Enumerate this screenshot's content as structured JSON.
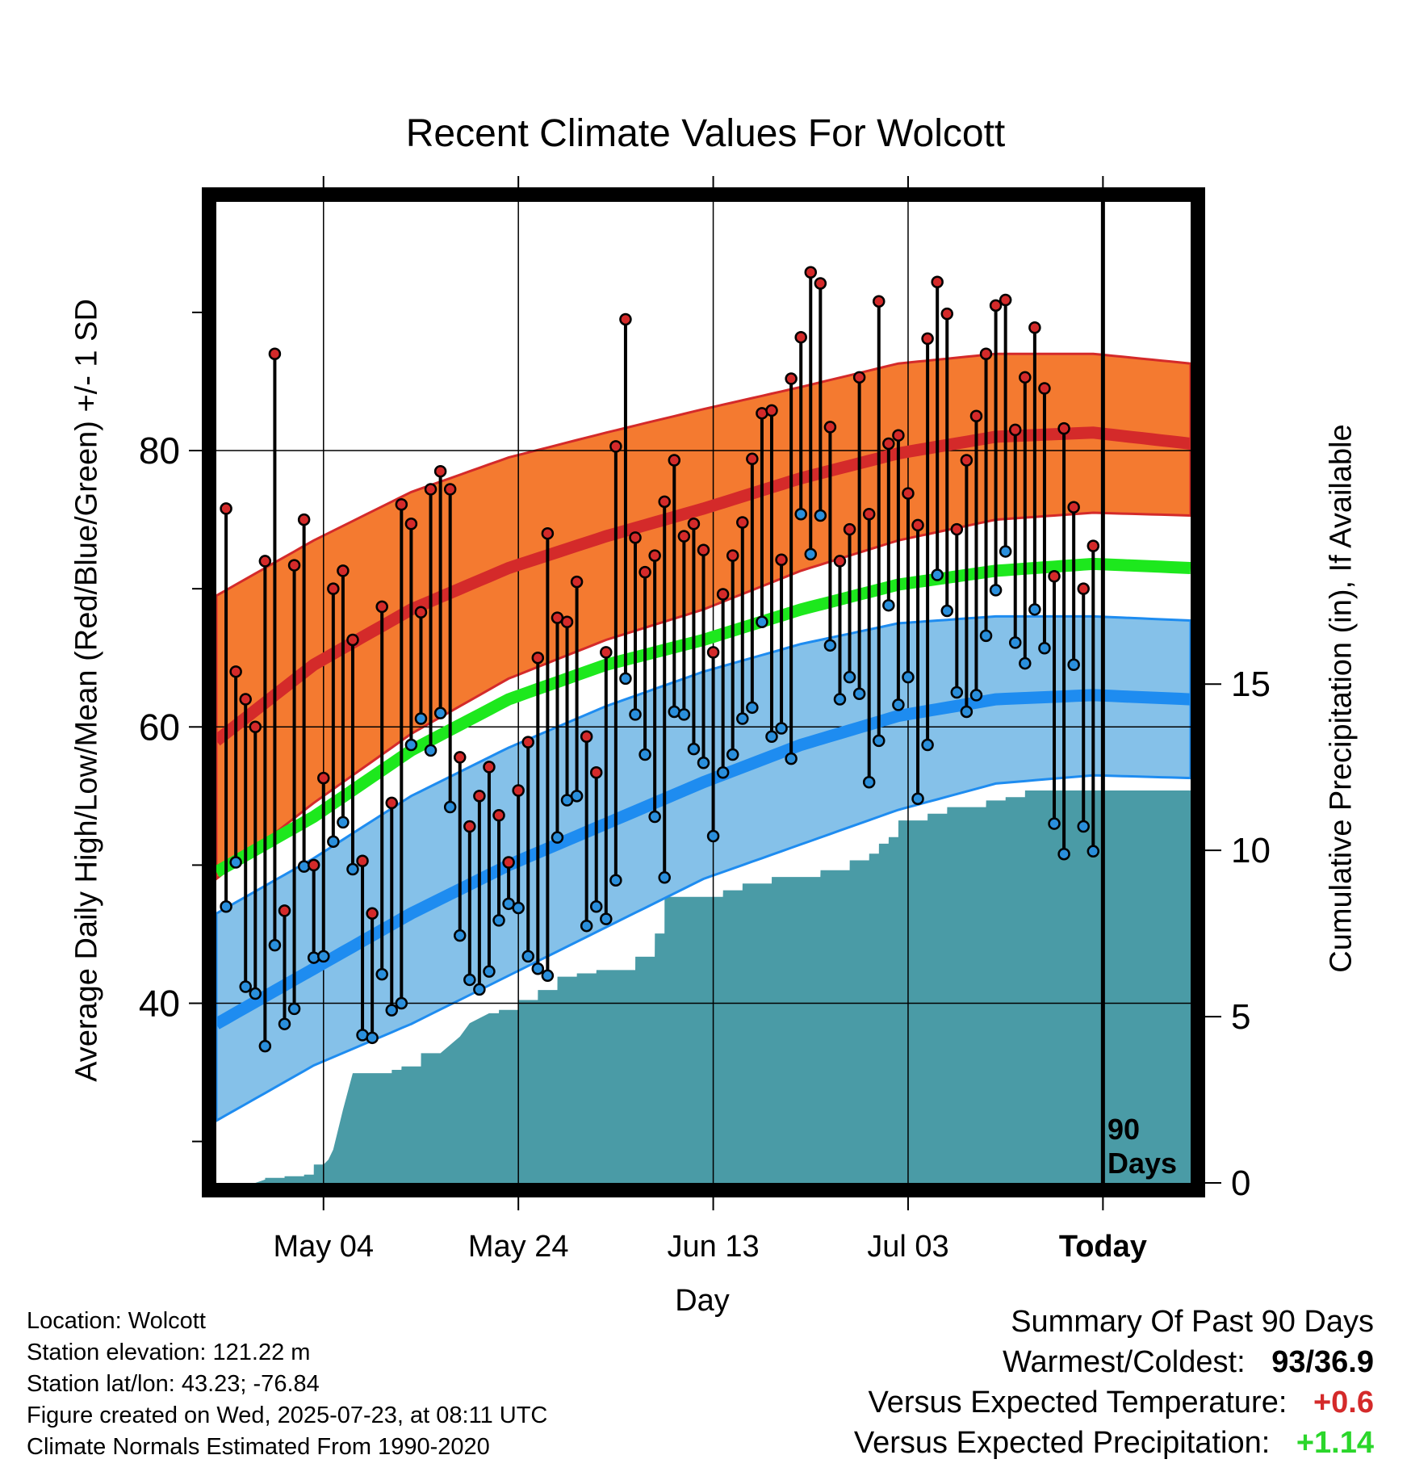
{
  "title": "Recent Climate Values For Wolcott",
  "chart_data": {
    "type": "line",
    "title": "Recent Climate Values For Wolcott",
    "xlabel": "Day",
    "ylabel": "Average Daily High/Low/Mean (Red/Blue/Green) +/- 1 SD",
    "y2label": "Cumulative Precipitation (in), If Available",
    "x_ticks": [
      "May 04",
      "May 24",
      "Jun 13",
      "Jul 03",
      "Today"
    ],
    "x_tick_days": [
      11,
      31,
      51,
      71,
      91
    ],
    "x_range": [
      0,
      100
    ],
    "ylim": [
      27,
      98
    ],
    "y_ticks": [
      40,
      60,
      80
    ],
    "y_minor_ticks": [
      30,
      50,
      70,
      90
    ],
    "y2lim": [
      0,
      29.5
    ],
    "y2_ticks": [
      0,
      5,
      10,
      15
    ],
    "grid": true,
    "today_marker": {
      "day": 91,
      "label_line1": "90",
      "label_line2": "Days"
    },
    "normals": {
      "days": [
        0,
        10,
        20,
        30,
        40,
        50,
        60,
        70,
        80,
        90,
        100
      ],
      "high_mean": [
        59,
        64.5,
        68.5,
        71.5,
        73.8,
        75.8,
        78,
        79.8,
        81,
        81.3,
        80.5
      ],
      "high_upper": [
        69.5,
        73.5,
        77,
        79.5,
        81.3,
        83,
        84.6,
        86.3,
        87,
        87,
        86.3
      ],
      "high_lower": [
        49,
        54.5,
        59.5,
        63.5,
        66.3,
        68.5,
        71.3,
        73.5,
        75,
        75.5,
        75.3
      ],
      "mean": [
        49.5,
        53.5,
        58.3,
        62,
        64.5,
        66.3,
        68.5,
        70.3,
        71.3,
        71.8,
        71.5
      ],
      "low_mean": [
        38.5,
        42.5,
        46.5,
        50,
        53,
        56,
        58.7,
        60.8,
        62,
        62.3,
        62
      ],
      "low_upper": [
        46.5,
        50.5,
        55,
        58.5,
        61.5,
        64,
        66,
        67.5,
        68,
        68,
        67.7
      ],
      "low_lower": [
        31.5,
        35.5,
        38.5,
        42,
        45.5,
        49,
        51.5,
        54,
        55.9,
        56.5,
        56.3
      ]
    },
    "series": [
      {
        "name": "High",
        "color": "#d42a2a",
        "values": [
          75.8,
          64,
          62,
          60,
          72,
          87,
          46.7,
          71.7,
          75,
          50,
          56.3,
          70,
          71.3,
          66.3,
          50.3,
          46.5,
          68.7,
          54.5,
          76.1,
          74.7,
          68.3,
          77.2,
          78.5,
          77.2,
          57.8,
          52.8,
          55,
          57.1,
          53.6,
          50.2,
          55.4,
          58.9,
          65,
          74,
          67.9,
          67.6,
          70.5,
          59.3,
          56.7,
          65.4,
          80.3,
          89.5,
          73.7,
          71.2,
          72.4,
          76.3,
          79.3,
          73.8,
          74.7,
          72.8,
          65.4,
          69.6,
          72.4,
          74.8,
          79.4,
          82.7,
          82.9,
          72.1,
          85.2,
          88.2,
          92.9,
          92.1,
          81.7,
          72,
          74.3,
          85.3,
          75.4,
          90.8,
          80.5,
          81.1,
          76.9,
          74.6,
          88.1,
          92.2,
          89.9,
          74.3,
          79.3,
          82.5,
          87,
          90.5,
          90.9,
          81.5,
          85.3,
          88.9,
          84.5,
          70.9,
          81.6,
          75.9,
          70,
          73.1
        ]
      },
      {
        "name": "Low",
        "color": "#2a8fdc",
        "values": [
          47,
          50.2,
          41.2,
          40.7,
          36.9,
          44.2,
          38.5,
          39.6,
          49.9,
          43.3,
          43.4,
          51.7,
          53.1,
          49.7,
          37.7,
          37.5,
          42.1,
          39.5,
          40,
          58.7,
          60.6,
          58.3,
          61,
          54.2,
          44.9,
          41.7,
          41,
          42.3,
          46,
          47.2,
          46.9,
          43.4,
          42.5,
          42,
          52,
          54.7,
          55,
          45.6,
          47,
          46.1,
          48.9,
          63.5,
          60.9,
          58,
          53.5,
          49.1,
          61.1,
          60.9,
          58.4,
          57.4,
          52.1,
          56.7,
          58,
          60.6,
          61.4,
          67.6,
          59.3,
          59.9,
          57.7,
          75.4,
          72.5,
          75.3,
          65.9,
          62,
          63.6,
          62.4,
          56,
          59,
          68.8,
          61.6,
          63.6,
          54.8,
          58.7,
          71,
          68.4,
          62.5,
          61.1,
          62.3,
          66.6,
          69.9,
          72.7,
          66.1,
          64.6,
          68.5,
          65.7,
          53,
          50.8,
          64.5,
          52.8,
          51
        ]
      },
      {
        "name": "Cumulative Precipitation",
        "color": "#4a9ba6",
        "days": [
          4,
          5,
          5.01,
          7,
          7.01,
          9,
          9.01,
          10,
          10.01,
          11,
          11.5,
          12,
          13,
          14,
          14.01,
          18,
          18.01,
          19,
          19.01,
          21,
          21.01,
          23,
          25,
          26,
          28,
          29,
          29.01,
          31,
          31.01,
          33,
          33.01,
          35,
          35.01,
          37,
          37.01,
          39,
          39.01,
          43,
          43.01,
          45,
          45.01,
          46,
          46.01,
          52,
          52.01,
          54,
          54.01,
          57,
          57.01,
          62,
          62.01,
          65,
          65.01,
          67,
          67.01,
          68,
          68.01,
          69,
          69.01,
          70,
          70.01,
          73,
          73.01,
          75,
          75.01,
          79,
          79.01,
          81,
          81.01,
          82,
          82.01,
          83,
          83.01,
          100
        ],
        "values": [
          0,
          0.1,
          0.15,
          0.15,
          0.2,
          0.2,
          0.25,
          0.25,
          0.55,
          0.55,
          0.7,
          1.0,
          2.2,
          3.3,
          3.3,
          3.3,
          3.4,
          3.4,
          3.5,
          3.5,
          3.9,
          3.9,
          4.4,
          4.8,
          5.1,
          5.1,
          5.2,
          5.2,
          5.5,
          5.5,
          5.8,
          5.8,
          6.2,
          6.2,
          6.3,
          6.3,
          6.4,
          6.4,
          6.8,
          6.8,
          7.5,
          7.5,
          8.6,
          8.6,
          8.8,
          8.8,
          9.0,
          9.0,
          9.2,
          9.2,
          9.4,
          9.4,
          9.7,
          9.7,
          9.9,
          9.9,
          10.2,
          10.2,
          10.4,
          10.4,
          10.9,
          10.9,
          11.1,
          11.1,
          11.3,
          11.3,
          11.5,
          11.5,
          11.6,
          11.6,
          11.6,
          11.6,
          11.8,
          11.8
        ]
      }
    ]
  },
  "footer": {
    "location": "Location: Wolcott",
    "elevation": "Station elevation: 121.22 m",
    "latlon": "Station lat/lon: 43.23; -76.84",
    "created": "Figure created on Wed, 2025-07-23, at 08:11 UTC",
    "normals": "Climate Normals Estimated From 1990-2020"
  },
  "summary": {
    "heading": "Summary Of Past 90 Days",
    "warmest_label": "Warmest/Coldest:",
    "warmest_value": "93/36.9",
    "temp_label": "Versus Expected Temperature:",
    "temp_value": "+0.6",
    "temp_color": "#d42a2a",
    "precip_label": "Versus Expected Precipitation:",
    "precip_value": "+1.14",
    "precip_color": "#2bd62b"
  },
  "colors": {
    "high_band": "#f47a30",
    "high_line": "#d42a2a",
    "mean_line": "#1de81d",
    "low_band": "#85c1e9",
    "low_line": "#1e8cf0",
    "precip_fill": "#4a9ba6"
  }
}
